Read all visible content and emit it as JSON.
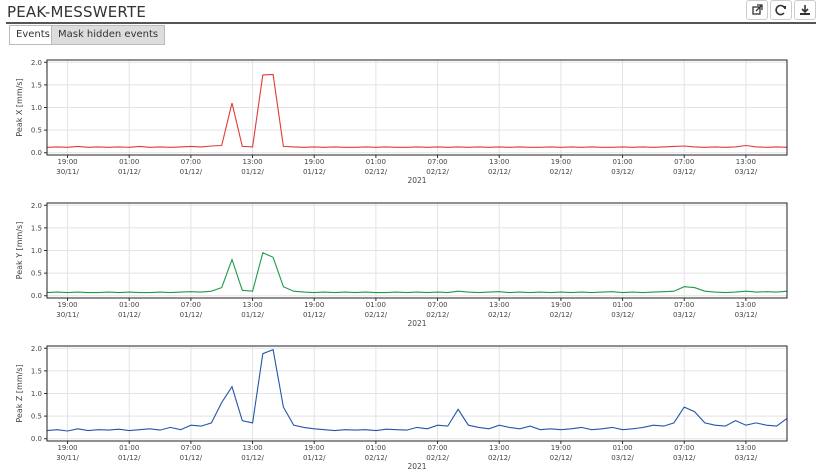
{
  "header": {
    "title": "PEAK-MESSWERTE",
    "buttons": [
      "Events",
      "Mask hidden events"
    ]
  },
  "chart_data": [
    {
      "type": "line",
      "y_label": "Peak X [mm/s]",
      "x_label": "2021",
      "color": "#e03a3a",
      "grid": true,
      "xlim": [
        "2021-11-30T17:00",
        "2021-12-03T17:00"
      ],
      "ylim": [
        -0.05,
        2.05
      ],
      "yticks": [
        {
          "value": 0,
          "label": "0.0"
        },
        {
          "value": 0.5,
          "label": "0.5"
        },
        {
          "value": 1,
          "label": "1.0"
        },
        {
          "value": 1.5,
          "label": "1.5"
        },
        {
          "value": 2,
          "label": "2.0"
        }
      ],
      "xticks": [
        {
          "value": "2021-11-30T19:00",
          "label": "19:00\n30/11/"
        },
        {
          "value": "2021-12-01T01:00",
          "label": "01:00\n01/12/"
        },
        {
          "value": "2021-12-01T07:00",
          "label": "07:00\n01/12/"
        },
        {
          "value": "2021-12-01T13:00",
          "label": "13:00\n01/12/"
        },
        {
          "value": "2021-12-01T19:00",
          "label": "19:00\n01/12/"
        },
        {
          "value": "2021-12-02T01:00",
          "label": "01:00\n02/12/"
        },
        {
          "value": "2021-12-02T07:00",
          "label": "07:00\n02/12/"
        },
        {
          "value": "2021-12-02T13:00",
          "label": "13:00\n02/12/"
        },
        {
          "value": "2021-12-02T19:00",
          "label": "19:00\n02/12/"
        },
        {
          "value": "2021-12-03T01:00",
          "label": "01:00\n03/12/"
        },
        {
          "value": "2021-12-03T07:00",
          "label": "07:00\n03/12/"
        },
        {
          "value": "2021-12-03T13:00",
          "label": "13:00\n03/12/"
        }
      ],
      "x": [
        "2021-11-30T17:00",
        "2021-11-30T18:00",
        "2021-11-30T19:00",
        "2021-11-30T20:00",
        "2021-11-30T21:00",
        "2021-11-30T22:00",
        "2021-11-30T23:00",
        "2021-12-01T00:00",
        "2021-12-01T01:00",
        "2021-12-01T02:00",
        "2021-12-01T03:00",
        "2021-12-01T04:00",
        "2021-12-01T05:00",
        "2021-12-01T06:00",
        "2021-12-01T07:00",
        "2021-12-01T08:00",
        "2021-12-01T09:00",
        "2021-12-01T10:00",
        "2021-12-01T11:00",
        "2021-12-01T12:00",
        "2021-12-01T13:00",
        "2021-12-01T14:00",
        "2021-12-01T15:00",
        "2021-12-01T16:00",
        "2021-12-01T17:00",
        "2021-12-01T18:00",
        "2021-12-01T19:00",
        "2021-12-01T20:00",
        "2021-12-01T21:00",
        "2021-12-01T22:00",
        "2021-12-01T23:00",
        "2021-12-02T00:00",
        "2021-12-02T01:00",
        "2021-12-02T02:00",
        "2021-12-02T03:00",
        "2021-12-02T04:00",
        "2021-12-02T05:00",
        "2021-12-02T06:00",
        "2021-12-02T07:00",
        "2021-12-02T08:00",
        "2021-12-02T09:00",
        "2021-12-02T10:00",
        "2021-12-02T11:00",
        "2021-12-02T12:00",
        "2021-12-02T13:00",
        "2021-12-02T14:00",
        "2021-12-02T15:00",
        "2021-12-02T16:00",
        "2021-12-02T17:00",
        "2021-12-02T18:00",
        "2021-12-02T19:00",
        "2021-12-02T20:00",
        "2021-12-02T21:00",
        "2021-12-02T22:00",
        "2021-12-02T23:00",
        "2021-12-03T00:00",
        "2021-12-03T01:00",
        "2021-12-03T02:00",
        "2021-12-03T03:00",
        "2021-12-03T04:00",
        "2021-12-03T05:00",
        "2021-12-03T06:00",
        "2021-12-03T07:00",
        "2021-12-03T08:00",
        "2021-12-03T09:00",
        "2021-12-03T10:00",
        "2021-12-03T11:00",
        "2021-12-03T12:00",
        "2021-12-03T13:00",
        "2021-12-03T14:00",
        "2021-12-03T15:00",
        "2021-12-03T16:00",
        "2021-12-03T17:00"
      ],
      "values": [
        0.12,
        0.13,
        0.12,
        0.14,
        0.12,
        0.13,
        0.12,
        0.13,
        0.12,
        0.14,
        0.12,
        0.13,
        0.12,
        0.13,
        0.14,
        0.13,
        0.15,
        0.16,
        1.1,
        0.14,
        0.13,
        1.72,
        1.73,
        0.14,
        0.13,
        0.12,
        0.13,
        0.12,
        0.13,
        0.12,
        0.12,
        0.13,
        0.12,
        0.13,
        0.12,
        0.12,
        0.13,
        0.12,
        0.13,
        0.12,
        0.13,
        0.12,
        0.13,
        0.12,
        0.13,
        0.12,
        0.13,
        0.12,
        0.12,
        0.13,
        0.12,
        0.13,
        0.12,
        0.13,
        0.12,
        0.12,
        0.13,
        0.12,
        0.13,
        0.12,
        0.13,
        0.14,
        0.15,
        0.13,
        0.12,
        0.13,
        0.12,
        0.13,
        0.16,
        0.13,
        0.12,
        0.13,
        0.12
      ]
    },
    {
      "type": "line",
      "y_label": "Peak Y [mm/s]",
      "x_label": "2021",
      "color": "#1f9a4c",
      "grid": true,
      "xlim": [
        "2021-11-30T17:00",
        "2021-12-03T17:00"
      ],
      "ylim": [
        -0.05,
        2.05
      ],
      "yticks": [
        {
          "value": 0,
          "label": "0.0"
        },
        {
          "value": 0.5,
          "label": "0.5"
        },
        {
          "value": 1,
          "label": "1.0"
        },
        {
          "value": 1.5,
          "label": "1.5"
        },
        {
          "value": 2,
          "label": "2.0"
        }
      ],
      "xticks": [
        {
          "value": "2021-11-30T19:00",
          "label": "19:00\n30/11/"
        },
        {
          "value": "2021-12-01T01:00",
          "label": "01:00\n01/12/"
        },
        {
          "value": "2021-12-01T07:00",
          "label": "07:00\n01/12/"
        },
        {
          "value": "2021-12-01T13:00",
          "label": "13:00\n01/12/"
        },
        {
          "value": "2021-12-01T19:00",
          "label": "19:00\n01/12/"
        },
        {
          "value": "2021-12-02T01:00",
          "label": "01:00\n02/12/"
        },
        {
          "value": "2021-12-02T07:00",
          "label": "07:00\n02/12/"
        },
        {
          "value": "2021-12-02T13:00",
          "label": "13:00\n02/12/"
        },
        {
          "value": "2021-12-02T19:00",
          "label": "19:00\n02/12/"
        },
        {
          "value": "2021-12-03T01:00",
          "label": "01:00\n03/12/"
        },
        {
          "value": "2021-12-03T07:00",
          "label": "07:00\n03/12/"
        },
        {
          "value": "2021-12-03T13:00",
          "label": "13:00\n03/12/"
        }
      ],
      "x": [
        "2021-11-30T17:00",
        "2021-11-30T18:00",
        "2021-11-30T19:00",
        "2021-11-30T20:00",
        "2021-11-30T21:00",
        "2021-11-30T22:00",
        "2021-11-30T23:00",
        "2021-12-01T00:00",
        "2021-12-01T01:00",
        "2021-12-01T02:00",
        "2021-12-01T03:00",
        "2021-12-01T04:00",
        "2021-12-01T05:00",
        "2021-12-01T06:00",
        "2021-12-01T07:00",
        "2021-12-01T08:00",
        "2021-12-01T09:00",
        "2021-12-01T10:00",
        "2021-12-01T11:00",
        "2021-12-01T12:00",
        "2021-12-01T13:00",
        "2021-12-01T14:00",
        "2021-12-01T15:00",
        "2021-12-01T16:00",
        "2021-12-01T17:00",
        "2021-12-01T18:00",
        "2021-12-01T19:00",
        "2021-12-01T20:00",
        "2021-12-01T21:00",
        "2021-12-01T22:00",
        "2021-12-01T23:00",
        "2021-12-02T00:00",
        "2021-12-02T01:00",
        "2021-12-02T02:00",
        "2021-12-02T03:00",
        "2021-12-02T04:00",
        "2021-12-02T05:00",
        "2021-12-02T06:00",
        "2021-12-02T07:00",
        "2021-12-02T08:00",
        "2021-12-02T09:00",
        "2021-12-02T10:00",
        "2021-12-02T11:00",
        "2021-12-02T12:00",
        "2021-12-02T13:00",
        "2021-12-02T14:00",
        "2021-12-02T15:00",
        "2021-12-02T16:00",
        "2021-12-02T17:00",
        "2021-12-02T18:00",
        "2021-12-02T19:00",
        "2021-12-02T20:00",
        "2021-12-02T21:00",
        "2021-12-02T22:00",
        "2021-12-02T23:00",
        "2021-12-03T00:00",
        "2021-12-03T01:00",
        "2021-12-03T02:00",
        "2021-12-03T03:00",
        "2021-12-03T04:00",
        "2021-12-03T05:00",
        "2021-12-03T06:00",
        "2021-12-03T07:00",
        "2021-12-03T08:00",
        "2021-12-03T09:00",
        "2021-12-03T10:00",
        "2021-12-03T11:00",
        "2021-12-03T12:00",
        "2021-12-03T13:00",
        "2021-12-03T14:00",
        "2021-12-03T15:00",
        "2021-12-03T16:00",
        "2021-12-03T17:00"
      ],
      "values": [
        0.07,
        0.08,
        0.07,
        0.08,
        0.07,
        0.07,
        0.08,
        0.07,
        0.08,
        0.07,
        0.07,
        0.08,
        0.07,
        0.08,
        0.09,
        0.08,
        0.1,
        0.18,
        0.8,
        0.12,
        0.1,
        0.95,
        0.85,
        0.2,
        0.1,
        0.08,
        0.07,
        0.08,
        0.07,
        0.08,
        0.07,
        0.08,
        0.07,
        0.07,
        0.08,
        0.07,
        0.08,
        0.07,
        0.08,
        0.07,
        0.1,
        0.08,
        0.07,
        0.08,
        0.09,
        0.07,
        0.08,
        0.07,
        0.08,
        0.07,
        0.08,
        0.07,
        0.08,
        0.07,
        0.08,
        0.09,
        0.07,
        0.08,
        0.07,
        0.08,
        0.09,
        0.1,
        0.2,
        0.18,
        0.1,
        0.08,
        0.07,
        0.08,
        0.1,
        0.08,
        0.09,
        0.08,
        0.1
      ]
    },
    {
      "type": "line",
      "y_label": "Peak Z [mm/s]",
      "x_label": "2021",
      "color": "#2456a8",
      "grid": true,
      "xlim": [
        "2021-11-30T17:00",
        "2021-12-03T17:00"
      ],
      "ylim": [
        -0.05,
        2.05
      ],
      "yticks": [
        {
          "value": 0,
          "label": "0.0"
        },
        {
          "value": 0.5,
          "label": "0.5"
        },
        {
          "value": 1,
          "label": "1.0"
        },
        {
          "value": 1.5,
          "label": "1.5"
        },
        {
          "value": 2,
          "label": "2.0"
        }
      ],
      "xticks": [
        {
          "value": "2021-11-30T19:00",
          "label": "19:00\n30/11/"
        },
        {
          "value": "2021-12-01T01:00",
          "label": "01:00\n01/12/"
        },
        {
          "value": "2021-12-01T07:00",
          "label": "07:00\n01/12/"
        },
        {
          "value": "2021-12-01T13:00",
          "label": "13:00\n01/12/"
        },
        {
          "value": "2021-12-01T19:00",
          "label": "19:00\n01/12/"
        },
        {
          "value": "2021-12-02T01:00",
          "label": "01:00\n02/12/"
        },
        {
          "value": "2021-12-02T07:00",
          "label": "07:00\n02/12/"
        },
        {
          "value": "2021-12-02T13:00",
          "label": "13:00\n02/12/"
        },
        {
          "value": "2021-12-02T19:00",
          "label": "19:00\n02/12/"
        },
        {
          "value": "2021-12-03T01:00",
          "label": "01:00\n03/12/"
        },
        {
          "value": "2021-12-03T07:00",
          "label": "07:00\n03/12/"
        },
        {
          "value": "2021-12-03T13:00",
          "label": "13:00\n03/12/"
        }
      ],
      "x": [
        "2021-11-30T17:00",
        "2021-11-30T18:00",
        "2021-11-30T19:00",
        "2021-11-30T20:00",
        "2021-11-30T21:00",
        "2021-11-30T22:00",
        "2021-11-30T23:00",
        "2021-12-01T00:00",
        "2021-12-01T01:00",
        "2021-12-01T02:00",
        "2021-12-01T03:00",
        "2021-12-01T04:00",
        "2021-12-01T05:00",
        "2021-12-01T06:00",
        "2021-12-01T07:00",
        "2021-12-01T08:00",
        "2021-12-01T09:00",
        "2021-12-01T10:00",
        "2021-12-01T11:00",
        "2021-12-01T12:00",
        "2021-12-01T13:00",
        "2021-12-01T14:00",
        "2021-12-01T15:00",
        "2021-12-01T16:00",
        "2021-12-01T17:00",
        "2021-12-01T18:00",
        "2021-12-01T19:00",
        "2021-12-01T20:00",
        "2021-12-01T21:00",
        "2021-12-01T22:00",
        "2021-12-01T23:00",
        "2021-12-02T00:00",
        "2021-12-02T01:00",
        "2021-12-02T02:00",
        "2021-12-02T03:00",
        "2021-12-02T04:00",
        "2021-12-02T05:00",
        "2021-12-02T06:00",
        "2021-12-02T07:00",
        "2021-12-02T08:00",
        "2021-12-02T09:00",
        "2021-12-02T10:00",
        "2021-12-02T11:00",
        "2021-12-02T12:00",
        "2021-12-02T13:00",
        "2021-12-02T14:00",
        "2021-12-02T15:00",
        "2021-12-02T16:00",
        "2021-12-02T17:00",
        "2021-12-02T18:00",
        "2021-12-02T19:00",
        "2021-12-02T20:00",
        "2021-12-02T21:00",
        "2021-12-02T22:00",
        "2021-12-02T23:00",
        "2021-12-03T00:00",
        "2021-12-03T01:00",
        "2021-12-03T02:00",
        "2021-12-03T03:00",
        "2021-12-03T04:00",
        "2021-12-03T05:00",
        "2021-12-03T06:00",
        "2021-12-03T07:00",
        "2021-12-03T08:00",
        "2021-12-03T09:00",
        "2021-12-03T10:00",
        "2021-12-03T11:00",
        "2021-12-03T12:00",
        "2021-12-03T13:00",
        "2021-12-03T14:00",
        "2021-12-03T15:00",
        "2021-12-03T16:00",
        "2021-12-03T17:00"
      ],
      "values": [
        0.18,
        0.2,
        0.17,
        0.22,
        0.18,
        0.2,
        0.19,
        0.21,
        0.18,
        0.2,
        0.22,
        0.19,
        0.25,
        0.2,
        0.3,
        0.28,
        0.35,
        0.8,
        1.15,
        0.4,
        0.35,
        1.88,
        1.97,
        0.7,
        0.3,
        0.25,
        0.22,
        0.2,
        0.18,
        0.2,
        0.19,
        0.2,
        0.18,
        0.21,
        0.2,
        0.19,
        0.25,
        0.22,
        0.3,
        0.28,
        0.65,
        0.3,
        0.25,
        0.22,
        0.3,
        0.25,
        0.22,
        0.28,
        0.2,
        0.22,
        0.2,
        0.22,
        0.25,
        0.2,
        0.22,
        0.25,
        0.2,
        0.22,
        0.25,
        0.3,
        0.28,
        0.35,
        0.7,
        0.6,
        0.35,
        0.3,
        0.28,
        0.4,
        0.3,
        0.35,
        0.3,
        0.28,
        0.45
      ]
    }
  ]
}
